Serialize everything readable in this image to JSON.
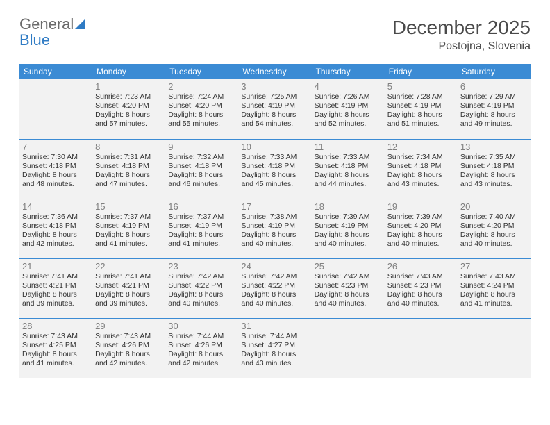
{
  "brand": {
    "name_gray": "General",
    "name_blue": "Blue"
  },
  "title": "December 2025",
  "location": "Postojna, Slovenia",
  "calendar": {
    "header_bg": "#3b8bd4",
    "header_fg": "#ffffff",
    "cell_bg": "#f2f2f2",
    "rule_color": "#3b8bd4",
    "daynum_color": "#808080",
    "body_text_color": "#333333",
    "fontsize_header": 12,
    "fontsize_daynum": 13,
    "fontsize_body": 10.5,
    "day_labels": [
      "Sunday",
      "Monday",
      "Tuesday",
      "Wednesday",
      "Thursday",
      "Friday",
      "Saturday"
    ],
    "weeks": [
      [
        null,
        {
          "n": "1",
          "sunrise": "7:23 AM",
          "sunset": "4:20 PM",
          "daylight": "8 hours and 57 minutes."
        },
        {
          "n": "2",
          "sunrise": "7:24 AM",
          "sunset": "4:20 PM",
          "daylight": "8 hours and 55 minutes."
        },
        {
          "n": "3",
          "sunrise": "7:25 AM",
          "sunset": "4:19 PM",
          "daylight": "8 hours and 54 minutes."
        },
        {
          "n": "4",
          "sunrise": "7:26 AM",
          "sunset": "4:19 PM",
          "daylight": "8 hours and 52 minutes."
        },
        {
          "n": "5",
          "sunrise": "7:28 AM",
          "sunset": "4:19 PM",
          "daylight": "8 hours and 51 minutes."
        },
        {
          "n": "6",
          "sunrise": "7:29 AM",
          "sunset": "4:19 PM",
          "daylight": "8 hours and 49 minutes."
        }
      ],
      [
        {
          "n": "7",
          "sunrise": "7:30 AM",
          "sunset": "4:18 PM",
          "daylight": "8 hours and 48 minutes."
        },
        {
          "n": "8",
          "sunrise": "7:31 AM",
          "sunset": "4:18 PM",
          "daylight": "8 hours and 47 minutes."
        },
        {
          "n": "9",
          "sunrise": "7:32 AM",
          "sunset": "4:18 PM",
          "daylight": "8 hours and 46 minutes."
        },
        {
          "n": "10",
          "sunrise": "7:33 AM",
          "sunset": "4:18 PM",
          "daylight": "8 hours and 45 minutes."
        },
        {
          "n": "11",
          "sunrise": "7:33 AM",
          "sunset": "4:18 PM",
          "daylight": "8 hours and 44 minutes."
        },
        {
          "n": "12",
          "sunrise": "7:34 AM",
          "sunset": "4:18 PM",
          "daylight": "8 hours and 43 minutes."
        },
        {
          "n": "13",
          "sunrise": "7:35 AM",
          "sunset": "4:18 PM",
          "daylight": "8 hours and 43 minutes."
        }
      ],
      [
        {
          "n": "14",
          "sunrise": "7:36 AM",
          "sunset": "4:18 PM",
          "daylight": "8 hours and 42 minutes."
        },
        {
          "n": "15",
          "sunrise": "7:37 AM",
          "sunset": "4:19 PM",
          "daylight": "8 hours and 41 minutes."
        },
        {
          "n": "16",
          "sunrise": "7:37 AM",
          "sunset": "4:19 PM",
          "daylight": "8 hours and 41 minutes."
        },
        {
          "n": "17",
          "sunrise": "7:38 AM",
          "sunset": "4:19 PM",
          "daylight": "8 hours and 40 minutes."
        },
        {
          "n": "18",
          "sunrise": "7:39 AM",
          "sunset": "4:19 PM",
          "daylight": "8 hours and 40 minutes."
        },
        {
          "n": "19",
          "sunrise": "7:39 AM",
          "sunset": "4:20 PM",
          "daylight": "8 hours and 40 minutes."
        },
        {
          "n": "20",
          "sunrise": "7:40 AM",
          "sunset": "4:20 PM",
          "daylight": "8 hours and 40 minutes."
        }
      ],
      [
        {
          "n": "21",
          "sunrise": "7:41 AM",
          "sunset": "4:21 PM",
          "daylight": "8 hours and 39 minutes."
        },
        {
          "n": "22",
          "sunrise": "7:41 AM",
          "sunset": "4:21 PM",
          "daylight": "8 hours and 39 minutes."
        },
        {
          "n": "23",
          "sunrise": "7:42 AM",
          "sunset": "4:22 PM",
          "daylight": "8 hours and 40 minutes."
        },
        {
          "n": "24",
          "sunrise": "7:42 AM",
          "sunset": "4:22 PM",
          "daylight": "8 hours and 40 minutes."
        },
        {
          "n": "25",
          "sunrise": "7:42 AM",
          "sunset": "4:23 PM",
          "daylight": "8 hours and 40 minutes."
        },
        {
          "n": "26",
          "sunrise": "7:43 AM",
          "sunset": "4:23 PM",
          "daylight": "8 hours and 40 minutes."
        },
        {
          "n": "27",
          "sunrise": "7:43 AM",
          "sunset": "4:24 PM",
          "daylight": "8 hours and 41 minutes."
        }
      ],
      [
        {
          "n": "28",
          "sunrise": "7:43 AM",
          "sunset": "4:25 PM",
          "daylight": "8 hours and 41 minutes."
        },
        {
          "n": "29",
          "sunrise": "7:43 AM",
          "sunset": "4:26 PM",
          "daylight": "8 hours and 42 minutes."
        },
        {
          "n": "30",
          "sunrise": "7:44 AM",
          "sunset": "4:26 PM",
          "daylight": "8 hours and 42 minutes."
        },
        {
          "n": "31",
          "sunrise": "7:44 AM",
          "sunset": "4:27 PM",
          "daylight": "8 hours and 43 minutes."
        },
        null,
        null,
        null
      ]
    ],
    "labels": {
      "sunrise": "Sunrise:",
      "sunset": "Sunset:",
      "daylight": "Daylight:"
    }
  }
}
